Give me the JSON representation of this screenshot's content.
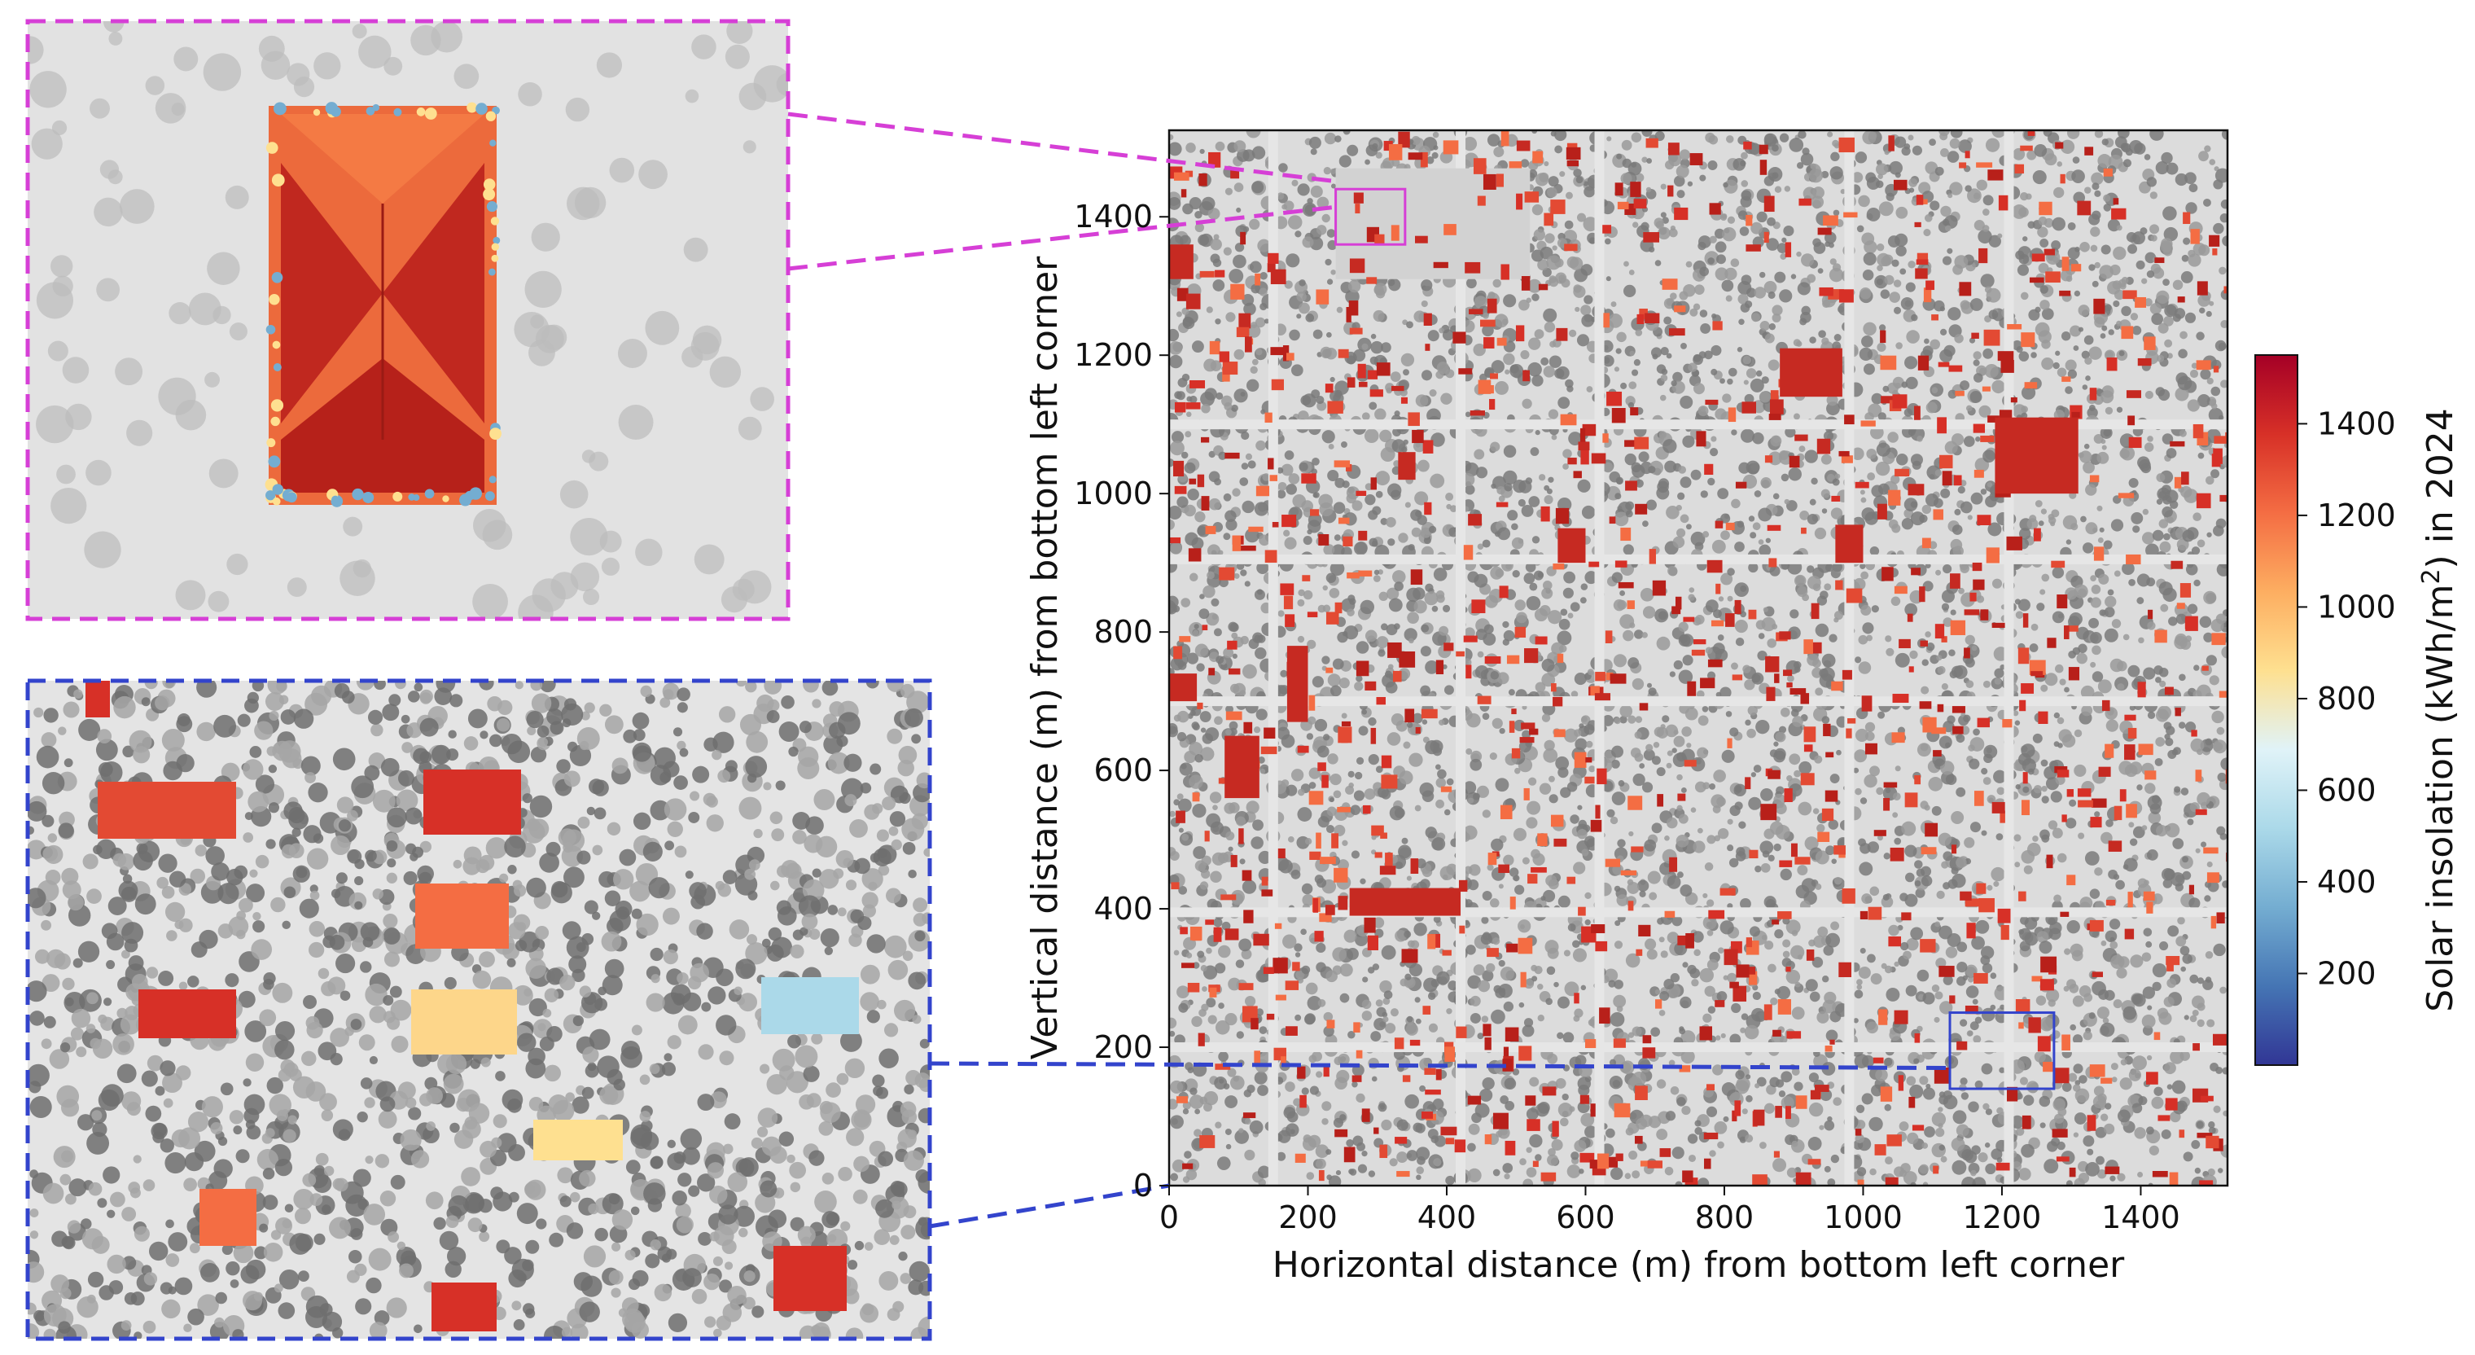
{
  "chart_data": {
    "type": "heatmap",
    "title": "",
    "xlabel": "Horizontal distance (m) from bottom left corner",
    "ylabel": "Vertical distance (m) from bottom left corner",
    "xlim": [
      0,
      1525
    ],
    "ylim": [
      0,
      1525
    ],
    "xticks": [
      0,
      200,
      400,
      600,
      800,
      1000,
      1200,
      1400
    ],
    "yticks": [
      0,
      200,
      400,
      600,
      800,
      1000,
      1200,
      1400
    ],
    "grid": false,
    "colorbar": {
      "label": "Solar insolation (kWh/m²) in 2024",
      "label_main": "Solar insolation (kWh/m",
      "label_sup": "2",
      "label_tail": ") in 2024",
      "range": [
        0,
        1550
      ],
      "ticks": [
        200,
        400,
        600,
        800,
        1000,
        1200,
        1400
      ],
      "colormap": "RdYlBu_r",
      "stops": [
        "#313695",
        "#4575b4",
        "#74add1",
        "#abd9e9",
        "#e0f3f8",
        "#fee090",
        "#fdae61",
        "#f46d43",
        "#d73027",
        "#a50026"
      ]
    },
    "highlight_regions": [
      {
        "name": "magenta inset",
        "x_range": [
          240,
          340
        ],
        "y_range": [
          1360,
          1440
        ],
        "color": "#d63fd6"
      },
      {
        "name": "blue inset",
        "x_range": [
          1125,
          1275
        ],
        "y_range": [
          140,
          250
        ],
        "color": "#3344cc"
      }
    ],
    "zoom_lines": [
      {
        "color": "#d63fd6",
        "to_axis_y": 1430,
        "inset_edge": "right of magenta inset"
      },
      {
        "color": "#3344cc",
        "to_axis_y": 170,
        "inset_edge": "right of blue inset"
      }
    ],
    "background": {
      "shade": "#d8d8d8",
      "tree": "#7a7a7a",
      "roof": "#d73027"
    }
  }
}
